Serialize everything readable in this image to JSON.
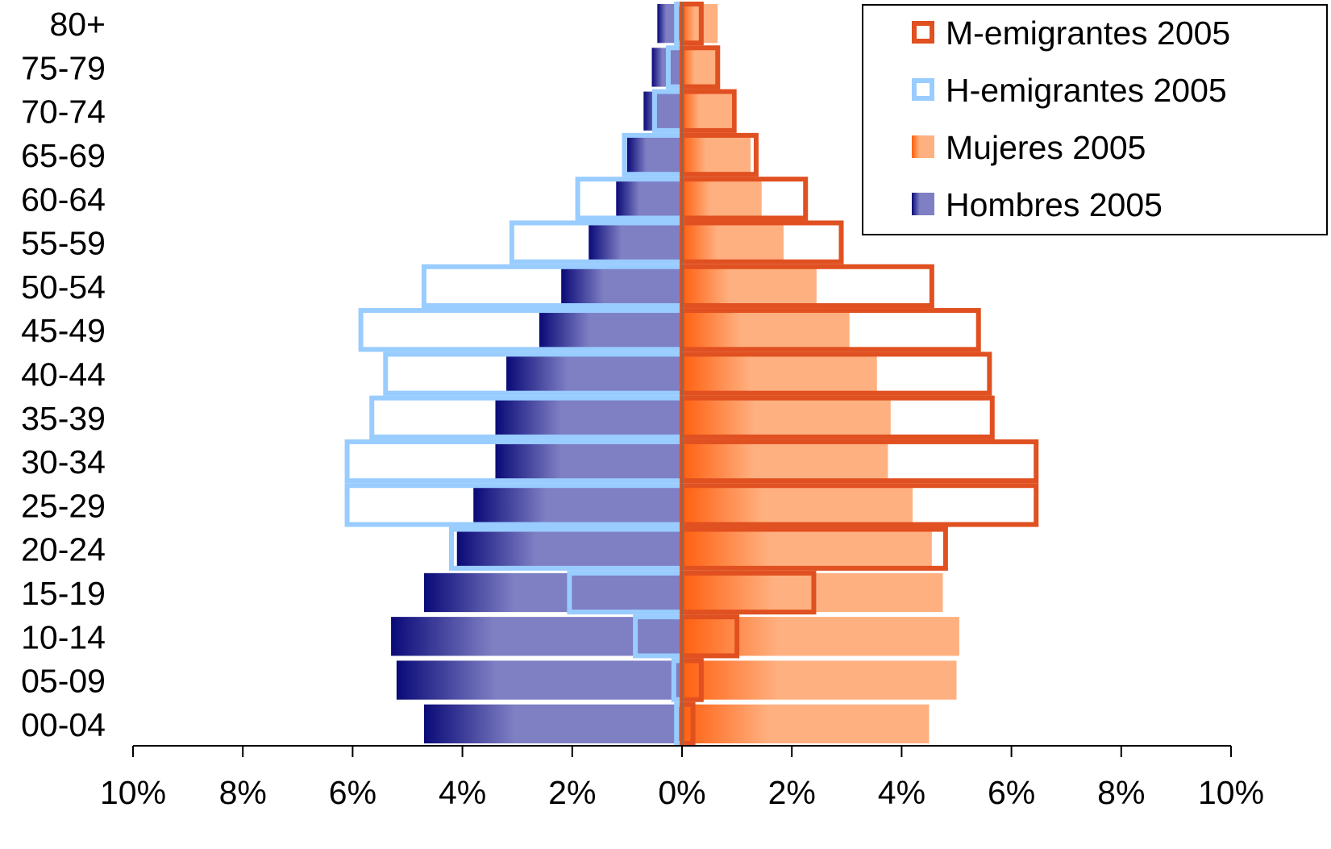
{
  "chart_data": {
    "type": "bar",
    "orientation": "horizontal-population-pyramid",
    "categories": [
      "00-04",
      "05-09",
      "10-14",
      "15-19",
      "20-24",
      "25-29",
      "30-34",
      "35-39",
      "40-44",
      "45-49",
      "50-54",
      "55-59",
      "60-64",
      "65-69",
      "70-74",
      "75-79",
      "80+"
    ],
    "series": [
      {
        "name": "Hombres 2005",
        "side": "left",
        "style": "filled",
        "color_dark": "#0a0a78",
        "color_light": "#7f7fc4",
        "values": [
          4.7,
          5.2,
          5.3,
          4.7,
          4.1,
          3.8,
          3.4,
          3.4,
          3.2,
          2.6,
          2.2,
          1.7,
          1.2,
          1.0,
          0.7,
          0.55,
          0.45
        ]
      },
      {
        "name": "Mujeres 2005",
        "side": "right",
        "style": "filled",
        "color_dark": "#ff6010",
        "color_light": "#ffb080",
        "values": [
          4.5,
          5.0,
          5.05,
          4.75,
          4.55,
          4.2,
          3.75,
          3.8,
          3.55,
          3.05,
          2.45,
          1.85,
          1.45,
          1.25,
          0.9,
          0.65,
          0.65
        ]
      },
      {
        "name": "H-emigrantes 2005",
        "side": "left",
        "style": "outline",
        "color": "#99ccff",
        "values": [
          0.1,
          0.15,
          0.85,
          2.05,
          4.2,
          6.1,
          6.1,
          5.65,
          5.4,
          5.85,
          4.7,
          3.1,
          1.9,
          1.05,
          0.5,
          0.25,
          0.1
        ]
      },
      {
        "name": "M-emigrantes 2005",
        "side": "right",
        "style": "outline",
        "color": "#e05020",
        "values": [
          0.2,
          0.35,
          1.0,
          2.4,
          4.8,
          6.45,
          6.45,
          5.65,
          5.6,
          5.4,
          4.55,
          2.9,
          2.25,
          1.35,
          0.95,
          0.65,
          0.35
        ]
      }
    ],
    "xlim": [
      -10,
      10
    ],
    "x_tick_values": [
      -10,
      -8,
      -6,
      -4,
      -2,
      0,
      2,
      4,
      6,
      8,
      10
    ],
    "x_tick_labels": [
      "10%",
      "8%",
      "6%",
      "4%",
      "2%",
      "0%",
      "2%",
      "4%",
      "6%",
      "8%",
      "10%"
    ],
    "legend": {
      "placement": "top-right",
      "entries": [
        "M-emigrantes 2005",
        "H-emigrantes 2005",
        "Mujeres 2005",
        "Hombres 2005"
      ]
    },
    "grid": false,
    "title": "",
    "xlabel": "",
    "ylabel": ""
  }
}
